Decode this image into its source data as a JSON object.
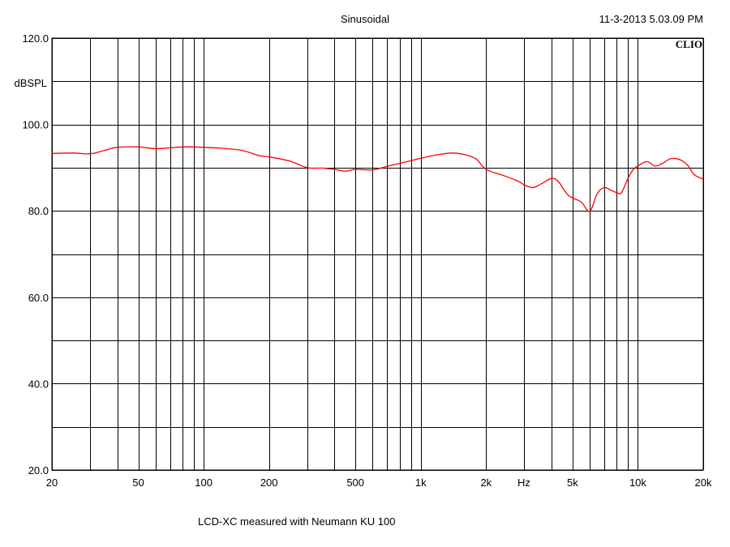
{
  "chart_data": {
    "type": "line",
    "title": "Sinusoidal",
    "timestamp": "11-3-2013 5.03.09 PM",
    "brand": "CLIO",
    "caption": "LCD-XC measured with Neumann KU 100",
    "ylabel": "dBSPL",
    "xunit": "Hz",
    "xscale": "log",
    "xlim": [
      20,
      20000
    ],
    "ylim": [
      20,
      120
    ],
    "grid": true,
    "y_ticks": [
      20,
      30,
      40,
      50,
      60,
      70,
      80,
      90,
      100,
      110,
      120
    ],
    "y_tick_labels": [
      {
        "value": 20,
        "label": "20.0"
      },
      {
        "value": 40,
        "label": "40.0"
      },
      {
        "value": 60,
        "label": "60.0"
      },
      {
        "value": 80,
        "label": "80.0"
      },
      {
        "value": 100,
        "label": "100.0"
      },
      {
        "value": 120,
        "label": "120.0"
      }
    ],
    "x_ticks": [
      20,
      30,
      40,
      50,
      60,
      70,
      80,
      90,
      100,
      200,
      300,
      400,
      500,
      600,
      700,
      800,
      900,
      1000,
      2000,
      3000,
      4000,
      5000,
      6000,
      7000,
      8000,
      9000,
      10000,
      20000
    ],
    "x_tick_labels": [
      {
        "value": 20,
        "label": "20"
      },
      {
        "value": 50,
        "label": "50"
      },
      {
        "value": 100,
        "label": "100"
      },
      {
        "value": 200,
        "label": "200"
      },
      {
        "value": 500,
        "label": "500"
      },
      {
        "value": 1000,
        "label": "1k"
      },
      {
        "value": 2000,
        "label": "2k"
      },
      {
        "value": 5000,
        "label": "5k"
      },
      {
        "value": 10000,
        "label": "10k"
      },
      {
        "value": 20000,
        "label": "20k"
      }
    ],
    "series_color": "#ff0000",
    "series": [
      {
        "x": [
          20,
          25,
          30,
          35,
          40,
          50,
          60,
          70,
          80,
          90,
          100,
          120,
          150,
          180,
          200,
          250,
          300,
          350,
          400,
          450,
          500,
          600,
          700,
          800,
          900,
          1000,
          1200,
          1400,
          1600,
          1800,
          2000,
          2400,
          2800,
          3000,
          3300,
          3600,
          4000,
          4300,
          4700,
          5000,
          5500,
          6000,
          6500,
          7000,
          7500,
          8000,
          8400,
          9000,
          9500,
          10000,
          11000,
          12000,
          13000,
          14000,
          15000,
          16000,
          17000,
          18000,
          19000,
          20000
        ],
        "y": [
          93.3,
          93.4,
          93.2,
          94.0,
          94.7,
          94.8,
          94.4,
          94.6,
          94.8,
          94.8,
          94.7,
          94.5,
          94.0,
          92.8,
          92.5,
          91.5,
          90.0,
          89.9,
          89.6,
          89.2,
          89.6,
          89.5,
          90.3,
          91.0,
          91.6,
          92.2,
          93.0,
          93.4,
          93.0,
          92.0,
          89.6,
          88.2,
          86.9,
          86.0,
          85.4,
          86.3,
          87.5,
          86.8,
          84.0,
          83.0,
          82.0,
          79.9,
          84.0,
          85.4,
          84.8,
          84.2,
          84.2,
          87.5,
          89.5,
          90.4,
          91.4,
          90.4,
          91.0,
          92.0,
          92.1,
          91.6,
          90.5,
          88.6,
          87.8,
          87.4
        ]
      }
    ]
  }
}
